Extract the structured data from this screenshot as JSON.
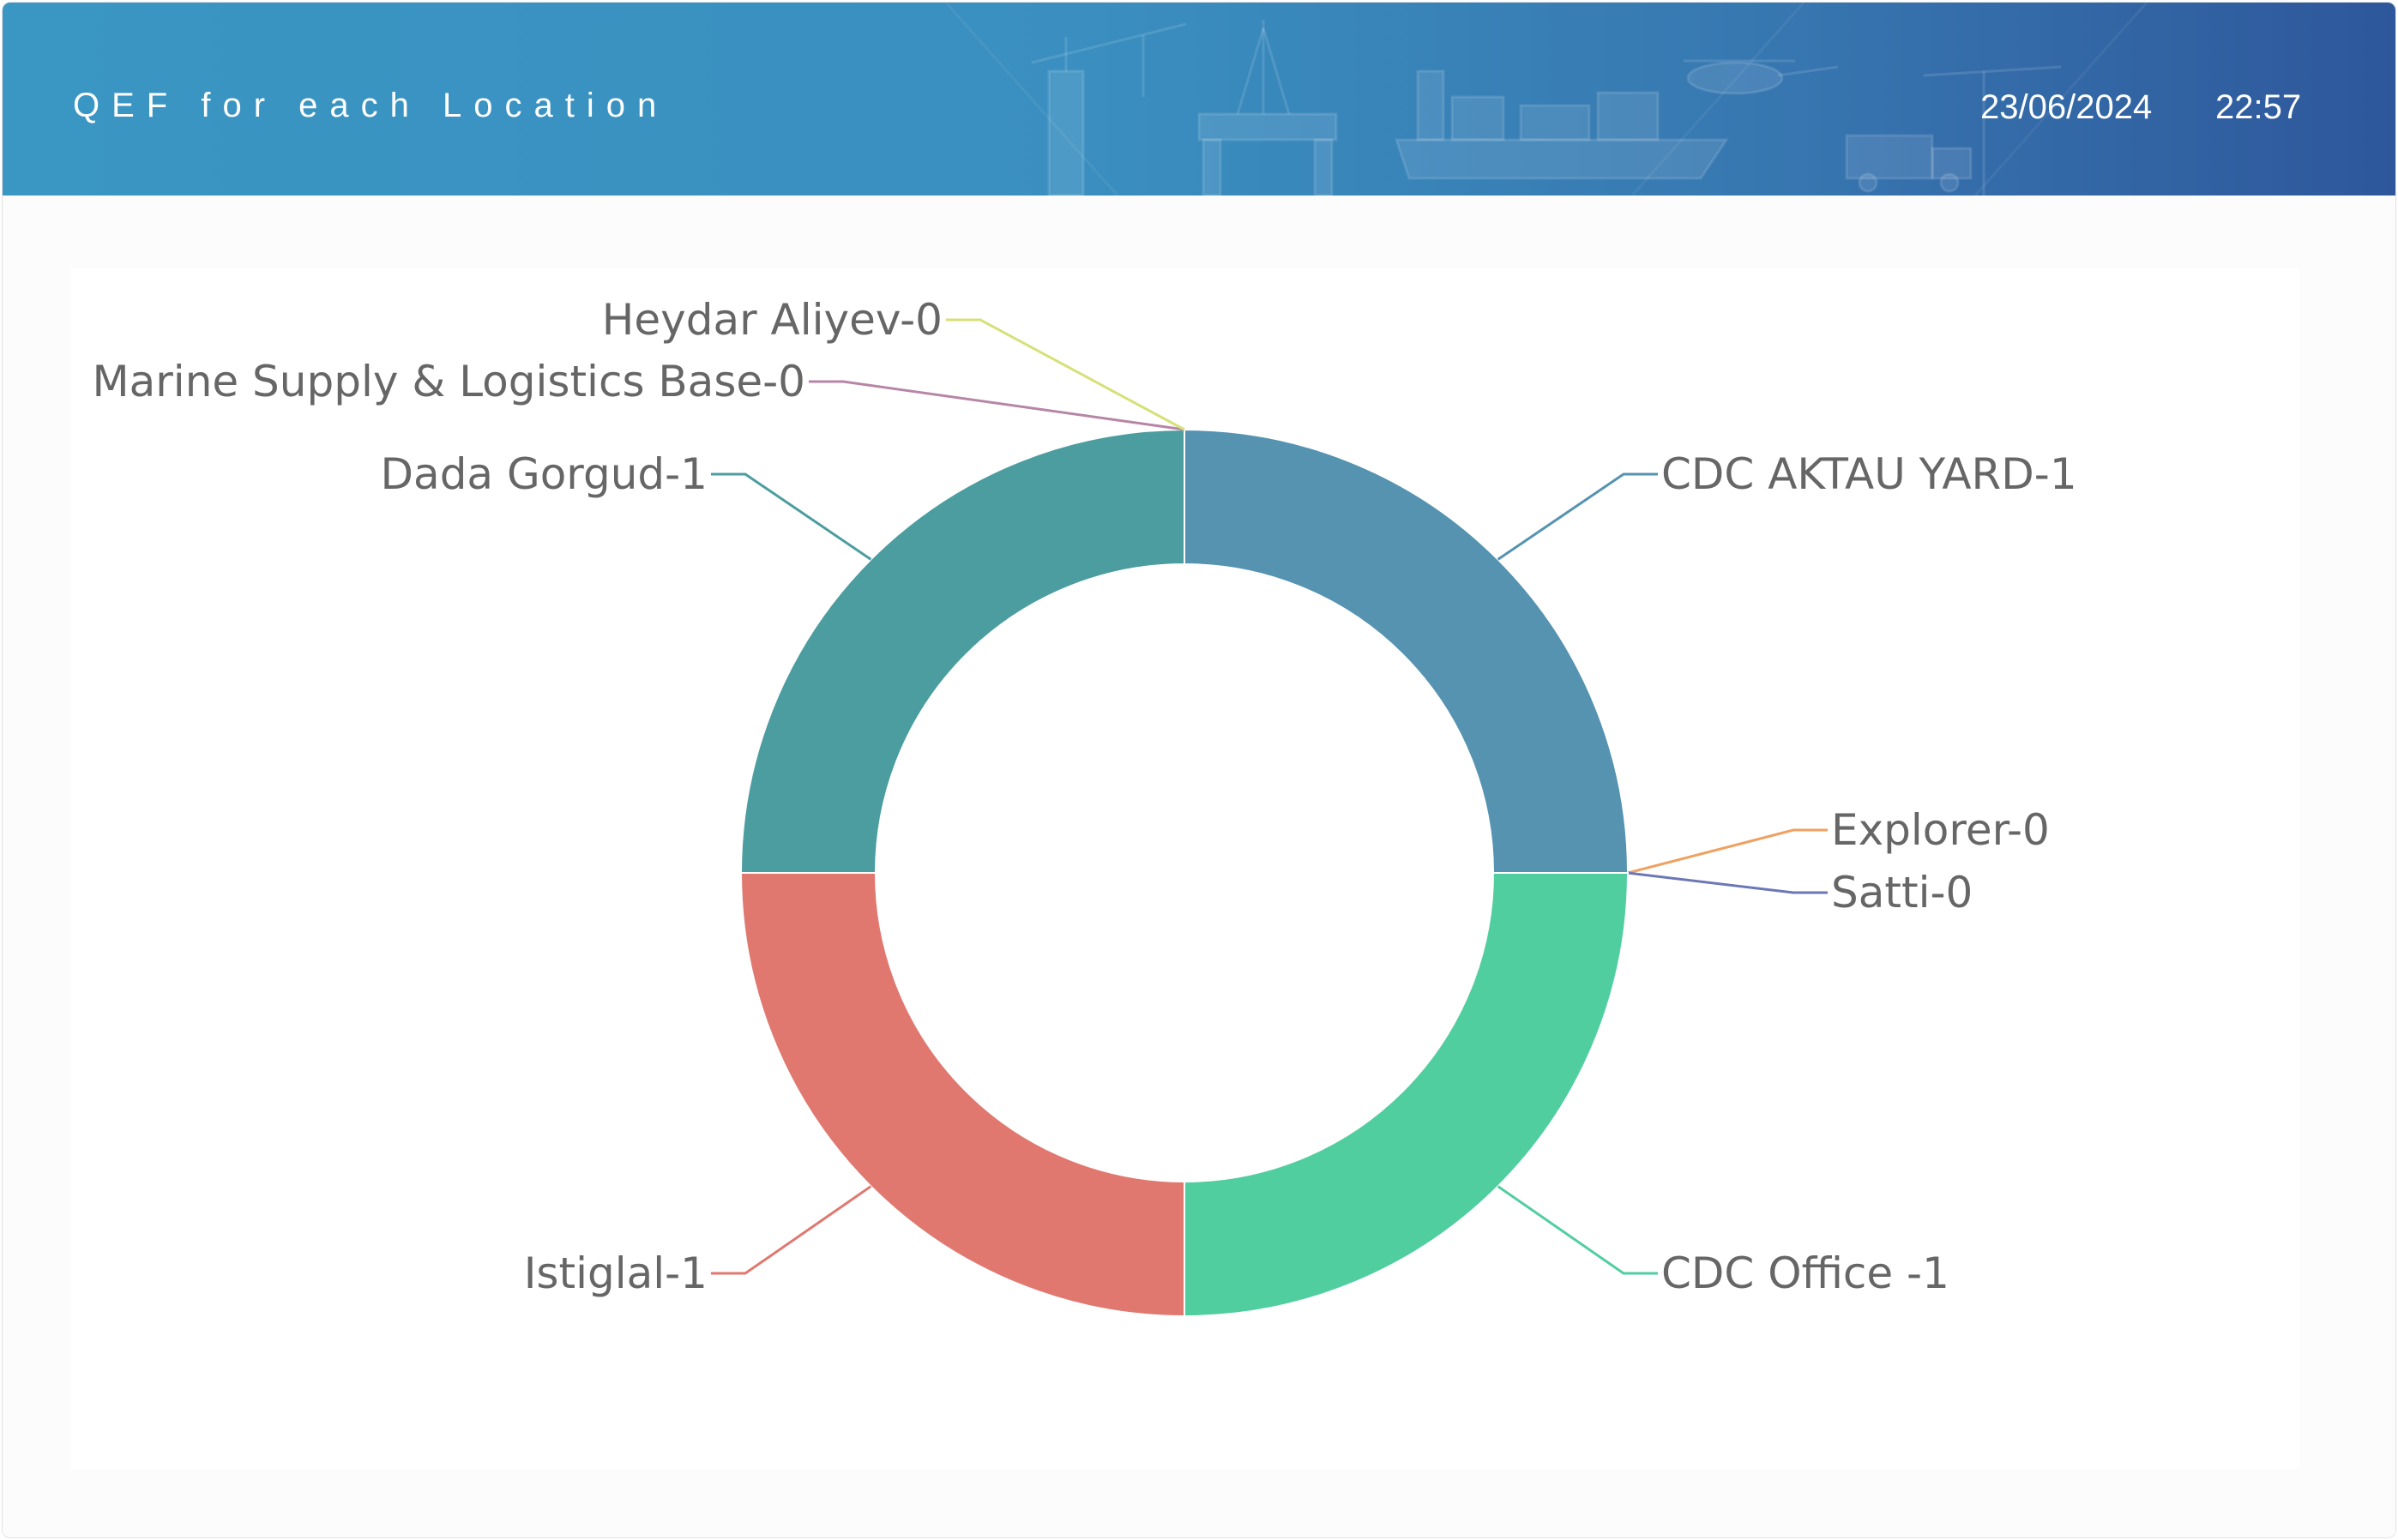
{
  "header": {
    "title": "QEF for each Location",
    "date": "23/06/2024",
    "time": "22:57"
  },
  "chart_data": {
    "type": "pie",
    "variant": "doughnut",
    "title": "QEF for each Location",
    "grid": false,
    "legend": "none",
    "slices": [
      {
        "label": "CDC AKTAU YARD-1",
        "value": 1,
        "color": "#5593b1"
      },
      {
        "label": "Explorer-0",
        "value": 0,
        "color": "#f0a060"
      },
      {
        "label": "Satti-0",
        "value": 0,
        "color": "#6c77b6"
      },
      {
        "label": "CDC Office -1",
        "value": 1,
        "color": "#51cea0"
      },
      {
        "label": "Istiglal-1",
        "value": 1,
        "color": "#e07870"
      },
      {
        "label": "Dada Gorgud-1",
        "value": 1,
        "color": "#4c9da0"
      },
      {
        "label": "Marine Supply & Logistics Base-0",
        "value": 0,
        "color": "#b786a7"
      },
      {
        "label": "Heydar Aliyev-0",
        "value": 0,
        "color": "#d7e077"
      }
    ]
  }
}
